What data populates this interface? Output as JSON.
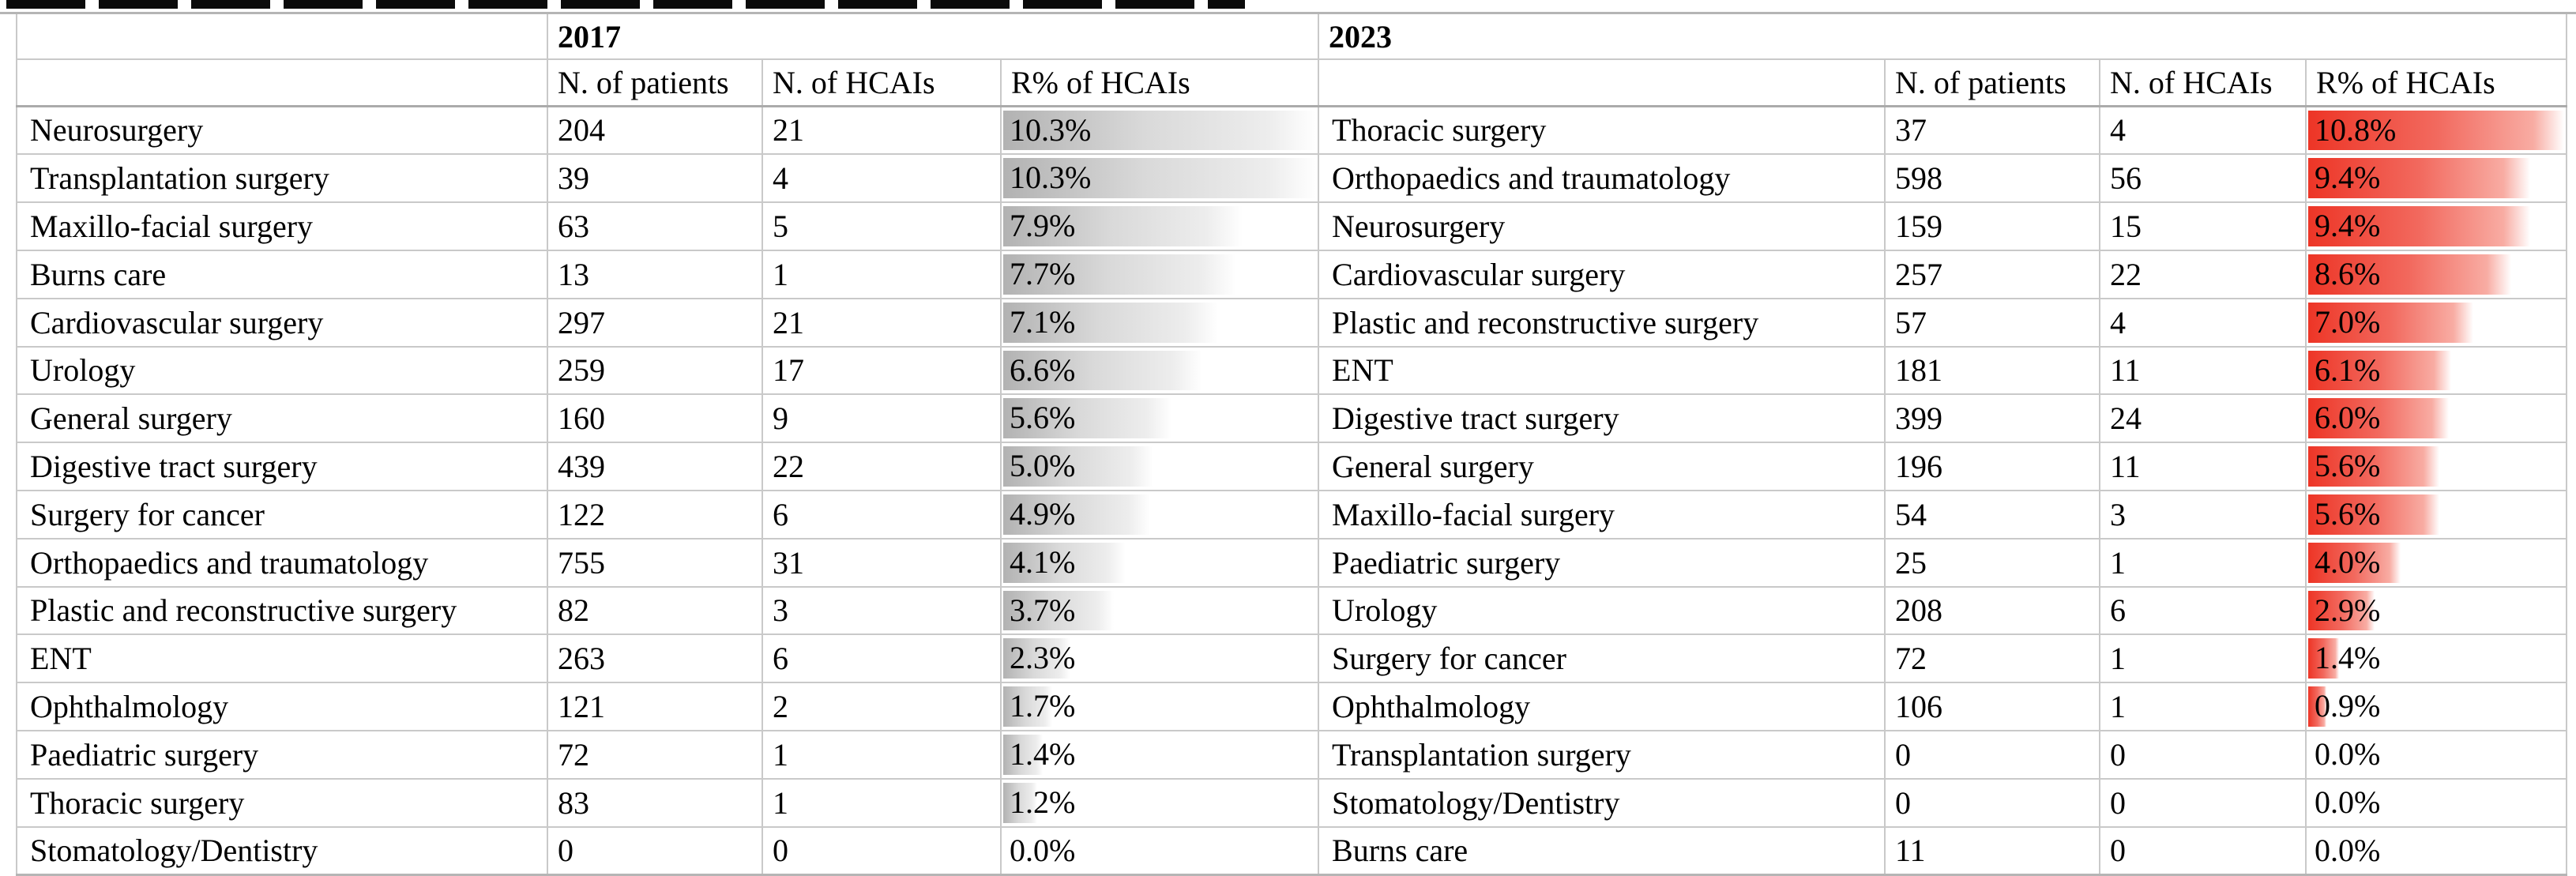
{
  "top_strip": {
    "color": "#0b0b0b"
  },
  "table": {
    "border_color": "#c9c9c9",
    "years": [
      {
        "label": "2017",
        "columns": [
          "N. of patients",
          "N. of HCAIs",
          "R% of HCAIs"
        ],
        "bar_color": "#b2b2b2",
        "bar_style": "gray-gradient",
        "bar_scale_max": 10.3,
        "rows": [
          {
            "specialty": "Neurosurgery",
            "patients": "204",
            "hcais": "21",
            "rate": "10.3%",
            "rate_value": 10.3
          },
          {
            "specialty": "Transplantation surgery",
            "patients": "39",
            "hcais": "4",
            "rate": "10.3%",
            "rate_value": 10.3
          },
          {
            "specialty": "Maxillo-facial surgery",
            "patients": "63",
            "hcais": "5",
            "rate": "7.9%",
            "rate_value": 7.9
          },
          {
            "specialty": "Burns care",
            "patients": "13",
            "hcais": "1",
            "rate": "7.7%",
            "rate_value": 7.7
          },
          {
            "specialty": "Cardiovascular surgery",
            "patients": "297",
            "hcais": "21",
            "rate": "7.1%",
            "rate_value": 7.1
          },
          {
            "specialty": "Urology",
            "patients": "259",
            "hcais": "17",
            "rate": "6.6%",
            "rate_value": 6.6
          },
          {
            "specialty": "General surgery",
            "patients": "160",
            "hcais": "9",
            "rate": "5.6%",
            "rate_value": 5.6
          },
          {
            "specialty": "Digestive tract surgery",
            "patients": "439",
            "hcais": "22",
            "rate": "5.0%",
            "rate_value": 5.0
          },
          {
            "specialty": "Surgery for cancer",
            "patients": "122",
            "hcais": "6",
            "rate": "4.9%",
            "rate_value": 4.9
          },
          {
            "specialty": "Orthopaedics and traumatology",
            "patients": "755",
            "hcais": "31",
            "rate": "4.1%",
            "rate_value": 4.1
          },
          {
            "specialty": "Plastic and reconstructive surgery",
            "patients": "82",
            "hcais": "3",
            "rate": "3.7%",
            "rate_value": 3.7
          },
          {
            "specialty": "ENT",
            "patients": "263",
            "hcais": "6",
            "rate": "2.3%",
            "rate_value": 2.3
          },
          {
            "specialty": "Ophthalmology",
            "patients": "121",
            "hcais": "2",
            "rate": "1.7%",
            "rate_value": 1.7
          },
          {
            "specialty": "Paediatric surgery",
            "patients": "72",
            "hcais": "1",
            "rate": "1.4%",
            "rate_value": 1.4
          },
          {
            "specialty": "Thoracic surgery",
            "patients": "83",
            "hcais": "1",
            "rate": "1.2%",
            "rate_value": 1.2
          },
          {
            "specialty": "Stomatology/Dentistry",
            "patients": "0",
            "hcais": "0",
            "rate": "0.0%",
            "rate_value": 0.0
          }
        ]
      },
      {
        "label": "2023",
        "columns": [
          "N. of patients",
          "N. of HCAIs",
          "R% of HCAIs"
        ],
        "bar_color": "#ed3526",
        "bar_style": "red-gradient",
        "bar_scale_max": 10.8,
        "rows": [
          {
            "specialty": "Thoracic surgery",
            "patients": "37",
            "hcais": "4",
            "rate": "10.8%",
            "rate_value": 10.8
          },
          {
            "specialty": "Orthopaedics and traumatology",
            "patients": "598",
            "hcais": "56",
            "rate": "9.4%",
            "rate_value": 9.4
          },
          {
            "specialty": "Neurosurgery",
            "patients": "159",
            "hcais": "15",
            "rate": "9.4%",
            "rate_value": 9.4
          },
          {
            "specialty": "Cardiovascular surgery",
            "patients": "257",
            "hcais": "22",
            "rate": "8.6%",
            "rate_value": 8.6
          },
          {
            "specialty": "Plastic and reconstructive surgery",
            "patients": "57",
            "hcais": "4",
            "rate": "7.0%",
            "rate_value": 7.0
          },
          {
            "specialty": "ENT",
            "patients": "181",
            "hcais": "11",
            "rate": "6.1%",
            "rate_value": 6.1
          },
          {
            "specialty": "Digestive tract surgery",
            "patients": "399",
            "hcais": "24",
            "rate": "6.0%",
            "rate_value": 6.0
          },
          {
            "specialty": "General surgery",
            "patients": "196",
            "hcais": "11",
            "rate": "5.6%",
            "rate_value": 5.6
          },
          {
            "specialty": "Maxillo-facial surgery",
            "patients": "54",
            "hcais": "3",
            "rate": "5.6%",
            "rate_value": 5.6
          },
          {
            "specialty": "Paediatric surgery",
            "patients": "25",
            "hcais": "1",
            "rate": "4.0%",
            "rate_value": 4.0
          },
          {
            "specialty": "Urology",
            "patients": "208",
            "hcais": "6",
            "rate": "2.9%",
            "rate_value": 2.9
          },
          {
            "specialty": "Surgery for cancer",
            "patients": "72",
            "hcais": "1",
            "rate": "1.4%",
            "rate_value": 1.4
          },
          {
            "specialty": "Ophthalmology",
            "patients": "106",
            "hcais": "1",
            "rate": "0.9%",
            "rate_value": 0.9
          },
          {
            "specialty": "Transplantation surgery",
            "patients": "0",
            "hcais": "0",
            "rate": "0.0%",
            "rate_value": 0.0
          },
          {
            "specialty": "Stomatology/Dentistry",
            "patients": "0",
            "hcais": "0",
            "rate": "0.0%",
            "rate_value": 0.0
          },
          {
            "specialty": "Burns care",
            "patients": "11",
            "hcais": "0",
            "rate": "0.0%",
            "rate_value": 0.0
          }
        ]
      }
    ]
  }
}
